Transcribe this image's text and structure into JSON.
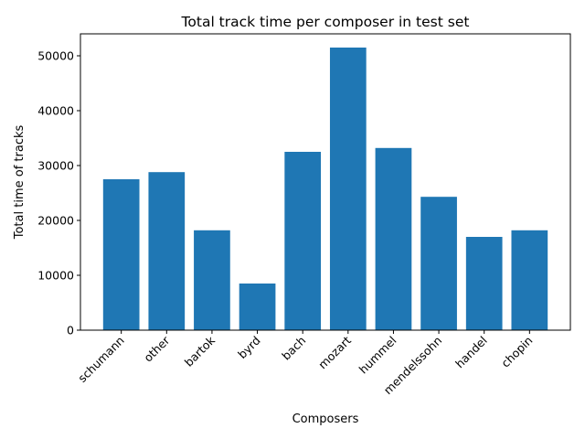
{
  "chart_data": {
    "type": "bar",
    "title": "Total track time per composer in test set",
    "xlabel": "Composers",
    "ylabel": "Total time of tracks",
    "categories": [
      "schumann",
      "other",
      "bartok",
      "byrd",
      "bach",
      "mozart",
      "hummel",
      "mendelssohn",
      "handel",
      "chopin"
    ],
    "values": [
      27500,
      28800,
      18200,
      8500,
      32500,
      51500,
      33200,
      24300,
      17000,
      18200
    ],
    "yticks": [
      0,
      10000,
      20000,
      30000,
      40000,
      50000
    ],
    "ylim": [
      0,
      54000
    ],
    "grid": false,
    "legend": "none",
    "bar_color": "#1f77b4"
  }
}
